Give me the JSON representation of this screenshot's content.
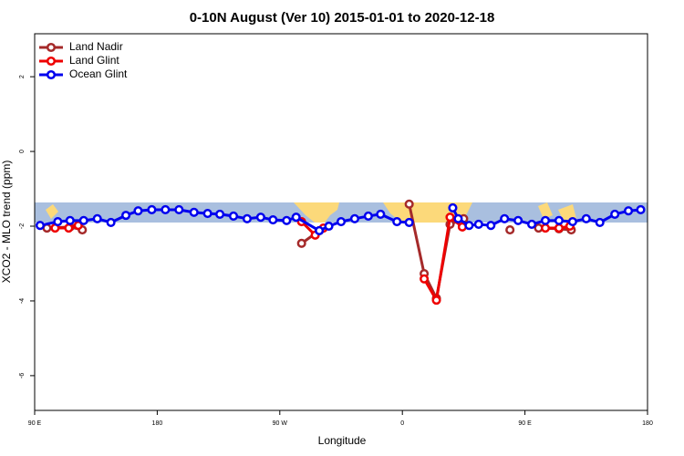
{
  "chart_data": {
    "type": "line",
    "title": "0-10N August (Ver 10)   2015-01-01 to 2020-12-18",
    "x_label": "Longitude",
    "y_label": "XCO2 - MLO trend (ppm)",
    "xlim": [
      90,
      540
    ],
    "xticks": [
      {
        "value": 90,
        "label": "90 E"
      },
      180,
      {
        "value": 270,
        "label": "90 W"
      },
      {
        "value": 360,
        "label": "0"
      },
      {
        "value": 450,
        "label": "90 E"
      },
      {
        "value": 540,
        "label": "180"
      }
    ],
    "ylim": [
      -6.93,
      3.15
    ],
    "yticks": [
      -6,
      -4,
      -2,
      0,
      2
    ],
    "legend": "top-left",
    "series": [
      {
        "name": "Land Nadir",
        "color": "#a52a2a",
        "x": [
          99,
          116,
          125,
          null,
          286,
          299,
          null,
          365,
          376,
          385,
          395,
          405,
          null,
          439,
          null,
          460,
          475,
          484
        ],
        "values": [
          -2.05,
          -2.02,
          -2.1,
          null,
          -2.46,
          -2.12,
          null,
          -1.41,
          -3.27,
          -3.93,
          -1.95,
          -1.8,
          null,
          -2.1,
          null,
          -2.05,
          -2.07,
          -2.1
        ]
      },
      {
        "name": "Land Glint",
        "color": "#ee0000",
        "x": [
          105,
          115,
          122,
          null,
          286,
          296,
          302,
          null,
          376,
          385,
          395,
          404,
          null,
          465,
          475,
          483
        ],
        "values": [
          -2.05,
          -2.05,
          -1.98,
          null,
          -1.88,
          -2.24,
          -2.05,
          null,
          -3.41,
          -3.98,
          -1.76,
          -2.02,
          null,
          -2.05,
          -2.05,
          -2.0
        ]
      },
      {
        "name": "Ocean Glint",
        "color": "#0000ee",
        "x": [
          94,
          107,
          116,
          126,
          136,
          146,
          157,
          166,
          176,
          186,
          196,
          207,
          217,
          226,
          236,
          246,
          256,
          265,
          275,
          282,
          299,
          306,
          315,
          325,
          335,
          344,
          356,
          365,
          null,
          397,
          401,
          409,
          416,
          425,
          435,
          445,
          455,
          465,
          475,
          485,
          495,
          505,
          516,
          526,
          535
        ],
        "values": [
          -1.98,
          -1.88,
          -1.85,
          -1.85,
          -1.8,
          -1.9,
          -1.71,
          -1.59,
          -1.56,
          -1.56,
          -1.56,
          -1.63,
          -1.66,
          -1.68,
          -1.73,
          -1.8,
          -1.76,
          -1.83,
          -1.85,
          -1.76,
          -2.12,
          -2.0,
          -1.88,
          -1.8,
          -1.73,
          -1.68,
          -1.88,
          -1.9,
          null,
          -1.51,
          -1.8,
          -1.98,
          -1.95,
          -1.98,
          -1.8,
          -1.85,
          -1.95,
          -1.85,
          -1.85,
          -1.88,
          -1.8,
          -1.9,
          -1.68,
          -1.59,
          -1.56
        ]
      }
    ]
  }
}
